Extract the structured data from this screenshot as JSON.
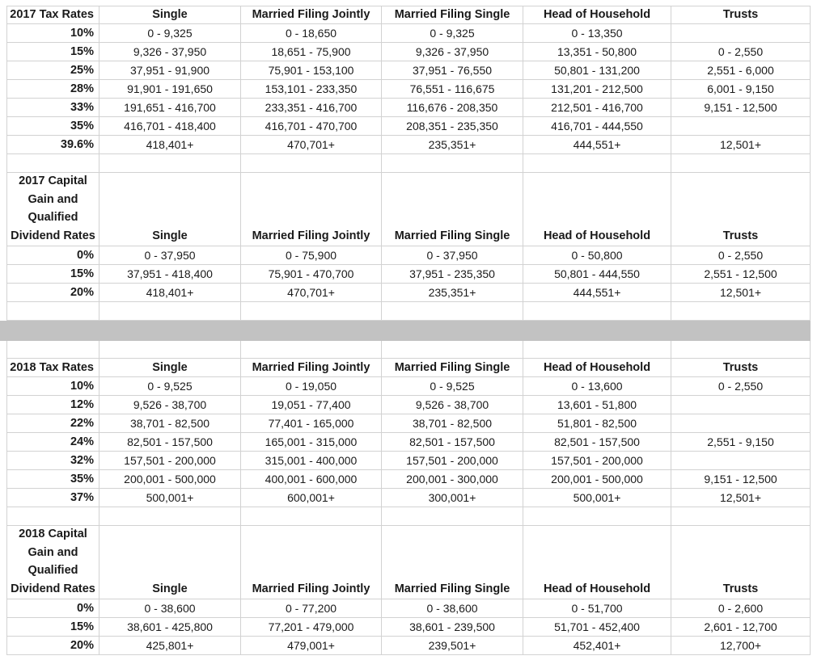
{
  "colors": {
    "divider_bar": "#c2c2c2",
    "gridline": "#d2d2d2",
    "text": "#1a1a1a",
    "background": "#ffffff"
  },
  "sections": [
    {
      "kind": "table",
      "name": "2017-tax-rates",
      "title": "2017 Tax Rates",
      "columns": [
        "Single",
        "Married Filing Jointly",
        "Married Filing Single",
        "Head of Household",
        "Trusts"
      ],
      "rows": [
        {
          "rate": "10%",
          "cells": [
            "0 - 9,325",
            "0 - 18,650",
            "0 - 9,325",
            "0 - 13,350",
            ""
          ]
        },
        {
          "rate": "15%",
          "cells": [
            "9,326 - 37,950",
            "18,651 - 75,900",
            "9,326 - 37,950",
            "13,351 - 50,800",
            "0 - 2,550"
          ]
        },
        {
          "rate": "25%",
          "cells": [
            "37,951 - 91,900",
            "75,901 - 153,100",
            "37,951 - 76,550",
            "50,801 - 131,200",
            "2,551 - 6,000"
          ]
        },
        {
          "rate": "28%",
          "cells": [
            "91,901 - 191,650",
            "153,101 - 233,350",
            "76,551 - 116,675",
            "131,201 - 212,500",
            "6,001 - 9,150"
          ]
        },
        {
          "rate": "33%",
          "cells": [
            "191,651 - 416,700",
            "233,351 - 416,700",
            "116,676 - 208,350",
            "212,501 - 416,700",
            "9,151 - 12,500"
          ]
        },
        {
          "rate": "35%",
          "cells": [
            "416,701 - 418,400",
            "416,701 - 470,700",
            "208,351 - 235,350",
            "416,701 - 444,550",
            ""
          ]
        },
        {
          "rate": "39.6%",
          "cells": [
            "418,401+",
            "470,701+",
            "235,351+",
            "444,551+",
            "12,501+"
          ]
        }
      ],
      "trailing_empty_row": true
    },
    {
      "kind": "table",
      "name": "2017-capital-gains",
      "title_lines": [
        "2017 Capital",
        "Gain and",
        "Qualified",
        "Dividend Rates"
      ],
      "columns": [
        "Single",
        "Married Filing Jointly",
        "Married Filing Single",
        "Head of Household",
        "Trusts"
      ],
      "rows": [
        {
          "rate": "0%",
          "cells": [
            "0 - 37,950",
            "0 - 75,900",
            "0 - 37,950",
            "0 - 50,800",
            "0 - 2,550"
          ]
        },
        {
          "rate": "15%",
          "cells": [
            "37,951 - 418,400",
            "75,901 - 470,700",
            "37,951 - 235,350",
            "50,801 - 444,550",
            "2,551 - 12,500"
          ]
        },
        {
          "rate": "20%",
          "cells": [
            "418,401+",
            "470,701+",
            "235,351+",
            "444,551+",
            "12,501+"
          ]
        }
      ],
      "trailing_empty_row": true
    },
    {
      "kind": "divider",
      "name": "gray-divider-bar"
    },
    {
      "kind": "spacer",
      "name": "spacer-row"
    },
    {
      "kind": "table",
      "name": "2018-tax-rates",
      "title": "2018 Tax Rates",
      "columns": [
        "Single",
        "Married Filing Jointly",
        "Married Filing Single",
        "Head of Household",
        "Trusts"
      ],
      "rows": [
        {
          "rate": "10%",
          "cells": [
            "0 - 9,525",
            "0 - 19,050",
            "0 - 9,525",
            "0 - 13,600",
            "0 - 2,550"
          ]
        },
        {
          "rate": "12%",
          "cells": [
            "9,526 - 38,700",
            "19,051 - 77,400",
            "9,526 - 38,700",
            "13,601 - 51,800",
            ""
          ]
        },
        {
          "rate": "22%",
          "cells": [
            "38,701 - 82,500",
            "77,401 - 165,000",
            "38,701 - 82,500",
            "51,801 - 82,500",
            ""
          ]
        },
        {
          "rate": "24%",
          "cells": [
            "82,501 - 157,500",
            "165,001 - 315,000",
            "82,501 - 157,500",
            "82,501 - 157,500",
            "2,551 - 9,150"
          ]
        },
        {
          "rate": "32%",
          "cells": [
            "157,501 - 200,000",
            "315,001 - 400,000",
            "157,501 - 200,000",
            "157,501 - 200,000",
            ""
          ]
        },
        {
          "rate": "35%",
          "cells": [
            "200,001 - 500,000",
            "400,001 - 600,000",
            "200,001 - 300,000",
            "200,001 - 500,000",
            "9,151 - 12,500"
          ]
        },
        {
          "rate": "37%",
          "cells": [
            "500,001+",
            "600,001+",
            "300,001+",
            "500,001+",
            "12,501+"
          ]
        }
      ],
      "trailing_empty_row": true
    },
    {
      "kind": "table",
      "name": "2018-capital-gains",
      "title_lines": [
        "2018 Capital",
        "Gain and",
        "Qualified",
        "Dividend Rates"
      ],
      "columns": [
        "Single",
        "Married Filing Jointly",
        "Married Filing Single",
        "Head of Household",
        "Trusts"
      ],
      "rows": [
        {
          "rate": "0%",
          "cells": [
            "0 - 38,600",
            "0 - 77,200",
            "0 - 38,600",
            "0 - 51,700",
            "0 - 2,600"
          ]
        },
        {
          "rate": "15%",
          "cells": [
            "38,601 - 425,800",
            "77,201 - 479,000",
            "38,601 - 239,500",
            "51,701 - 452,400",
            "2,601 - 12,700"
          ]
        },
        {
          "rate": "20%",
          "cells": [
            "425,801+",
            "479,001+",
            "239,501+",
            "452,401+",
            "12,700+"
          ]
        }
      ],
      "trailing_empty_row": false
    }
  ]
}
